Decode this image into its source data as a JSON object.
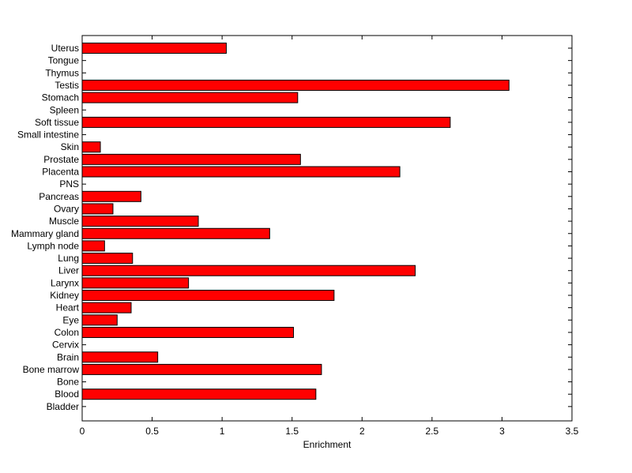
{
  "chart_data": {
    "type": "bar",
    "orientation": "horizontal",
    "categories": [
      "Uterus",
      "Tongue",
      "Thymus",
      "Testis",
      "Stomach",
      "Spleen",
      "Soft tissue",
      "Small intestine",
      "Skin",
      "Prostate",
      "Placenta",
      "PNS",
      "Pancreas",
      "Ovary",
      "Muscle",
      "Mammary gland",
      "Lymph node",
      "Lung",
      "Liver",
      "Larynx",
      "Kidney",
      "Heart",
      "Eye",
      "Colon",
      "Cervix",
      "Brain",
      "Bone marrow",
      "Bone",
      "Blood",
      "Bladder"
    ],
    "values": [
      1.03,
      0,
      0,
      3.05,
      1.54,
      0,
      2.63,
      0,
      0.13,
      1.56,
      2.27,
      0,
      0.42,
      0.22,
      0.83,
      1.34,
      0.16,
      0.36,
      2.38,
      0.76,
      1.8,
      0.35,
      0.25,
      1.51,
      0,
      0.54,
      1.71,
      0,
      1.67,
      0
    ],
    "xlabel": "Enrichment",
    "ylabel": "",
    "title": "",
    "xlim": [
      0,
      3.5
    ],
    "xticks": [
      0,
      0.5,
      1,
      1.5,
      2,
      2.5,
      3,
      3.5
    ],
    "xtick_labels": [
      "0",
      "0.5",
      "1",
      "1.5",
      "2",
      "2.5",
      "3",
      "3.5"
    ],
    "grid": false,
    "bar_color": "#ff0000",
    "bar_edge_color": "#000000"
  }
}
